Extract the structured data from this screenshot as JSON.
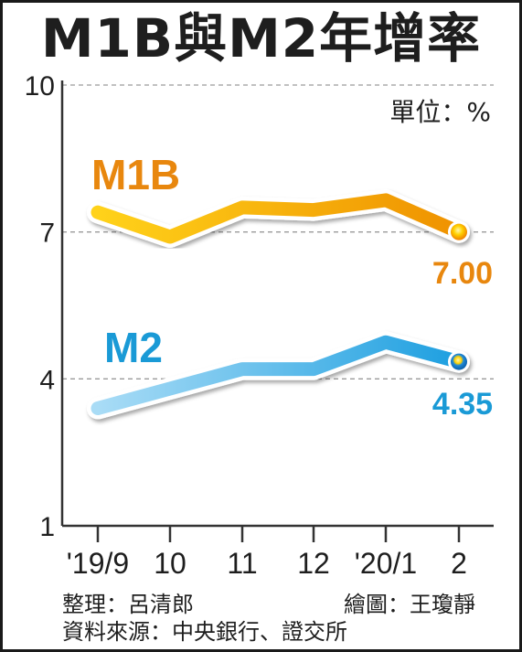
{
  "title": "M1B與M2年增率",
  "unit_label": "單位：%",
  "credits": {
    "editor": "整理：呂清郎",
    "illustrator": "繪圖：王瓊靜",
    "source": "資料來源：中央銀行、證交所"
  },
  "colors": {
    "m1b": "#f0a000",
    "m1b_label": "#e8870e",
    "m2": "#2aa7de",
    "m2_label": "#1a9ad6",
    "axis": "#333333",
    "grid": "#9a9a9a"
  },
  "chart_data": {
    "type": "line",
    "categories": [
      "'19/9",
      "10",
      "11",
      "12",
      "'20/1",
      "2"
    ],
    "yticks": [
      1,
      4,
      7,
      10
    ],
    "ylim": [
      1,
      10
    ],
    "grid": "dashed horizontal",
    "series": [
      {
        "name": "M1B",
        "values": [
          7.4,
          6.9,
          7.5,
          7.45,
          7.65,
          7.0
        ],
        "end_label": "7.00"
      },
      {
        "name": "M2",
        "values": [
          3.4,
          3.8,
          4.2,
          4.2,
          4.75,
          4.35
        ],
        "end_label": "4.35"
      }
    ]
  }
}
